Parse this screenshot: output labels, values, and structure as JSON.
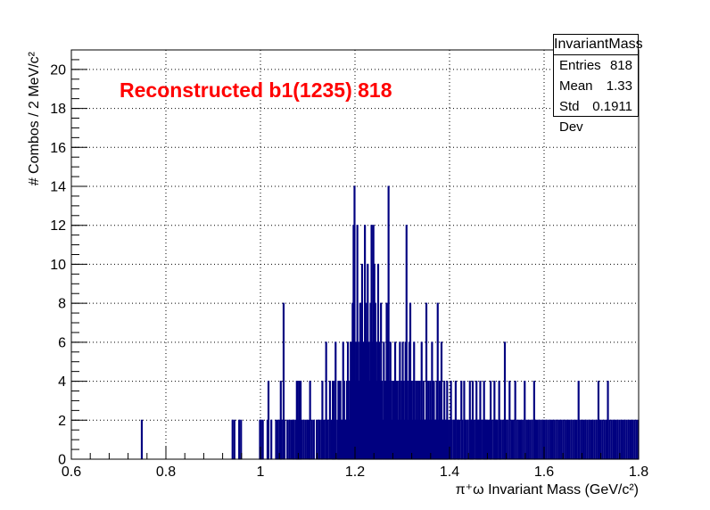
{
  "chart_data": {
    "type": "bar",
    "histogram_name": "InvariantMass",
    "annotation": "Reconstructed b1(1235) 818",
    "xlabel": "π⁺ω Invariant Mass (GeV/c²)",
    "ylabel": "# Combos / 2 MeV/c²",
    "xlim": [
      0.6,
      1.8
    ],
    "ylim": [
      0,
      21
    ],
    "x_ticks": [
      "0.6",
      "0.8",
      "1",
      "1.2",
      "1.4",
      "1.6",
      "1.8"
    ],
    "y_ticks": [
      "0",
      "2",
      "4",
      "6",
      "8",
      "10",
      "12",
      "14",
      "16",
      "18",
      "20"
    ],
    "grid": true,
    "bin_width": 0.002,
    "line_color": "#000080",
    "annotation_color": "#ff0000",
    "stats": [
      {
        "label": "Entries",
        "value": "818"
      },
      {
        "label": "Mean",
        "value": "1.33"
      },
      {
        "label": "Std Dev",
        "value": "0.1911"
      }
    ],
    "bins": [
      [
        0.748,
        2
      ],
      [
        0.94,
        2
      ],
      [
        0.944,
        2
      ],
      [
        0.954,
        2
      ],
      [
        0.958,
        2
      ],
      [
        0.998,
        2
      ],
      [
        1.0,
        2
      ],
      [
        1.004,
        2
      ],
      [
        1.014,
        2
      ],
      [
        1.016,
        4
      ],
      [
        1.022,
        2
      ],
      [
        1.032,
        2
      ],
      [
        1.036,
        2
      ],
      [
        1.04,
        2
      ],
      [
        1.042,
        4
      ],
      [
        1.044,
        2
      ],
      [
        1.048,
        8
      ],
      [
        1.05,
        2
      ],
      [
        1.056,
        2
      ],
      [
        1.06,
        2
      ],
      [
        1.064,
        2
      ],
      [
        1.068,
        2
      ],
      [
        1.07,
        2
      ],
      [
        1.074,
        2
      ],
      [
        1.076,
        4
      ],
      [
        1.078,
        4
      ],
      [
        1.08,
        2
      ],
      [
        1.082,
        4
      ],
      [
        1.084,
        4
      ],
      [
        1.086,
        2
      ],
      [
        1.09,
        2
      ],
      [
        1.094,
        2
      ],
      [
        1.098,
        2
      ],
      [
        1.102,
        2
      ],
      [
        1.104,
        4
      ],
      [
        1.108,
        2
      ],
      [
        1.112,
        2
      ],
      [
        1.118,
        2
      ],
      [
        1.122,
        2
      ],
      [
        1.124,
        2
      ],
      [
        1.128,
        2
      ],
      [
        1.13,
        4
      ],
      [
        1.134,
        2
      ],
      [
        1.138,
        6
      ],
      [
        1.14,
        2
      ],
      [
        1.142,
        2
      ],
      [
        1.146,
        4
      ],
      [
        1.15,
        2
      ],
      [
        1.152,
        4
      ],
      [
        1.154,
        4
      ],
      [
        1.156,
        2
      ],
      [
        1.158,
        6
      ],
      [
        1.162,
        2
      ],
      [
        1.164,
        4
      ],
      [
        1.166,
        2
      ],
      [
        1.168,
        4
      ],
      [
        1.17,
        2
      ],
      [
        1.172,
        2
      ],
      [
        1.174,
        6
      ],
      [
        1.176,
        4
      ],
      [
        1.178,
        2
      ],
      [
        1.18,
        2
      ],
      [
        1.182,
        4
      ],
      [
        1.184,
        6
      ],
      [
        1.186,
        2
      ],
      [
        1.188,
        4
      ],
      [
        1.19,
        6
      ],
      [
        1.192,
        6
      ],
      [
        1.194,
        8
      ],
      [
        1.196,
        12
      ],
      [
        1.198,
        14
      ],
      [
        1.2,
        4
      ],
      [
        1.202,
        6
      ],
      [
        1.204,
        12
      ],
      [
        1.206,
        6
      ],
      [
        1.208,
        4
      ],
      [
        1.21,
        8
      ],
      [
        1.212,
        6
      ],
      [
        1.214,
        10
      ],
      [
        1.216,
        4
      ],
      [
        1.218,
        6
      ],
      [
        1.22,
        12
      ],
      [
        1.222,
        8
      ],
      [
        1.224,
        6
      ],
      [
        1.226,
        10
      ],
      [
        1.228,
        6
      ],
      [
        1.23,
        4
      ],
      [
        1.232,
        8
      ],
      [
        1.234,
        12
      ],
      [
        1.236,
        6
      ],
      [
        1.238,
        12
      ],
      [
        1.24,
        10
      ],
      [
        1.242,
        8
      ],
      [
        1.244,
        6
      ],
      [
        1.246,
        4
      ],
      [
        1.248,
        10
      ],
      [
        1.25,
        6
      ],
      [
        1.252,
        4
      ],
      [
        1.254,
        8
      ],
      [
        1.256,
        4
      ],
      [
        1.258,
        2
      ],
      [
        1.26,
        6
      ],
      [
        1.262,
        4
      ],
      [
        1.264,
        4
      ],
      [
        1.266,
        8
      ],
      [
        1.268,
        6
      ],
      [
        1.27,
        14
      ],
      [
        1.272,
        4
      ],
      [
        1.274,
        6
      ],
      [
        1.276,
        4
      ],
      [
        1.278,
        2
      ],
      [
        1.28,
        4
      ],
      [
        1.282,
        2
      ],
      [
        1.284,
        6
      ],
      [
        1.286,
        4
      ],
      [
        1.288,
        4
      ],
      [
        1.29,
        2
      ],
      [
        1.292,
        4
      ],
      [
        1.294,
        6
      ],
      [
        1.296,
        2
      ],
      [
        1.298,
        4
      ],
      [
        1.3,
        6
      ],
      [
        1.302,
        4
      ],
      [
        1.304,
        2
      ],
      [
        1.306,
        6
      ],
      [
        1.308,
        12
      ],
      [
        1.31,
        4
      ],
      [
        1.312,
        2
      ],
      [
        1.314,
        6
      ],
      [
        1.316,
        8
      ],
      [
        1.318,
        4
      ],
      [
        1.32,
        2
      ],
      [
        1.322,
        4
      ],
      [
        1.324,
        6
      ],
      [
        1.326,
        2
      ],
      [
        1.328,
        4
      ],
      [
        1.33,
        2
      ],
      [
        1.332,
        4
      ],
      [
        1.334,
        2
      ],
      [
        1.336,
        4
      ],
      [
        1.338,
        2
      ],
      [
        1.34,
        6
      ],
      [
        1.342,
        2
      ],
      [
        1.344,
        4
      ],
      [
        1.346,
        2
      ],
      [
        1.348,
        2
      ],
      [
        1.35,
        8
      ],
      [
        1.352,
        2
      ],
      [
        1.354,
        4
      ],
      [
        1.356,
        2
      ],
      [
        1.358,
        4
      ],
      [
        1.36,
        2
      ],
      [
        1.362,
        6
      ],
      [
        1.364,
        2
      ],
      [
        1.366,
        4
      ],
      [
        1.368,
        2
      ],
      [
        1.37,
        2
      ],
      [
        1.372,
        4
      ],
      [
        1.374,
        8
      ],
      [
        1.376,
        2
      ],
      [
        1.378,
        4
      ],
      [
        1.38,
        2
      ],
      [
        1.382,
        6
      ],
      [
        1.384,
        2
      ],
      [
        1.386,
        2
      ],
      [
        1.388,
        4
      ],
      [
        1.39,
        2
      ],
      [
        1.392,
        2
      ],
      [
        1.394,
        4
      ],
      [
        1.396,
        2
      ],
      [
        1.4,
        2
      ],
      [
        1.402,
        4
      ],
      [
        1.404,
        2
      ],
      [
        1.408,
        2
      ],
      [
        1.41,
        2
      ],
      [
        1.412,
        4
      ],
      [
        1.416,
        2
      ],
      [
        1.418,
        2
      ],
      [
        1.42,
        2
      ],
      [
        1.424,
        4
      ],
      [
        1.426,
        2
      ],
      [
        1.43,
        4
      ],
      [
        1.432,
        2
      ],
      [
        1.434,
        2
      ],
      [
        1.438,
        2
      ],
      [
        1.442,
        4
      ],
      [
        1.444,
        2
      ],
      [
        1.446,
        2
      ],
      [
        1.448,
        4
      ],
      [
        1.45,
        2
      ],
      [
        1.454,
        2
      ],
      [
        1.456,
        4
      ],
      [
        1.458,
        2
      ],
      [
        1.46,
        2
      ],
      [
        1.462,
        2
      ],
      [
        1.464,
        4
      ],
      [
        1.466,
        2
      ],
      [
        1.47,
        2
      ],
      [
        1.472,
        4
      ],
      [
        1.474,
        2
      ],
      [
        1.476,
        2
      ],
      [
        1.478,
        2
      ],
      [
        1.48,
        2
      ],
      [
        1.484,
        2
      ],
      [
        1.486,
        4
      ],
      [
        1.488,
        2
      ],
      [
        1.492,
        2
      ],
      [
        1.494,
        4
      ],
      [
        1.496,
        2
      ],
      [
        1.498,
        2
      ],
      [
        1.5,
        2
      ],
      [
        1.504,
        4
      ],
      [
        1.506,
        2
      ],
      [
        1.508,
        2
      ],
      [
        1.512,
        2
      ],
      [
        1.516,
        6
      ],
      [
        1.518,
        2
      ],
      [
        1.522,
        2
      ],
      [
        1.526,
        4
      ],
      [
        1.53,
        2
      ],
      [
        1.534,
        2
      ],
      [
        1.538,
        4
      ],
      [
        1.542,
        2
      ],
      [
        1.546,
        2
      ],
      [
        1.55,
        2
      ],
      [
        1.554,
        2
      ],
      [
        1.558,
        4
      ],
      [
        1.562,
        2
      ],
      [
        1.566,
        2
      ],
      [
        1.57,
        2
      ],
      [
        1.574,
        2
      ],
      [
        1.578,
        4
      ],
      [
        1.58,
        2
      ],
      [
        1.584,
        2
      ],
      [
        1.588,
        2
      ],
      [
        1.592,
        2
      ],
      [
        1.596,
        2
      ],
      [
        1.6,
        2
      ],
      [
        1.604,
        2
      ],
      [
        1.608,
        2
      ],
      [
        1.612,
        2
      ],
      [
        1.616,
        2
      ],
      [
        1.62,
        2
      ],
      [
        1.624,
        2
      ],
      [
        1.628,
        2
      ],
      [
        1.632,
        2
      ],
      [
        1.636,
        2
      ],
      [
        1.64,
        2
      ],
      [
        1.644,
        2
      ],
      [
        1.648,
        2
      ],
      [
        1.652,
        2
      ],
      [
        1.656,
        2
      ],
      [
        1.66,
        2
      ],
      [
        1.664,
        2
      ],
      [
        1.668,
        2
      ],
      [
        1.672,
        4
      ],
      [
        1.674,
        2
      ],
      [
        1.678,
        2
      ],
      [
        1.682,
        2
      ],
      [
        1.686,
        2
      ],
      [
        1.69,
        2
      ],
      [
        1.694,
        2
      ],
      [
        1.698,
        2
      ],
      [
        1.702,
        2
      ],
      [
        1.706,
        2
      ],
      [
        1.71,
        2
      ],
      [
        1.714,
        4
      ],
      [
        1.718,
        2
      ],
      [
        1.722,
        2
      ],
      [
        1.726,
        2
      ],
      [
        1.73,
        2
      ],
      [
        1.734,
        4
      ],
      [
        1.738,
        2
      ],
      [
        1.742,
        2
      ],
      [
        1.746,
        2
      ],
      [
        1.75,
        2
      ],
      [
        1.754,
        2
      ],
      [
        1.758,
        2
      ],
      [
        1.762,
        2
      ],
      [
        1.766,
        2
      ],
      [
        1.77,
        2
      ],
      [
        1.774,
        2
      ],
      [
        1.778,
        2
      ],
      [
        1.782,
        2
      ],
      [
        1.786,
        2
      ],
      [
        1.79,
        2
      ],
      [
        1.794,
        2
      ],
      [
        1.798,
        2
      ]
    ]
  }
}
